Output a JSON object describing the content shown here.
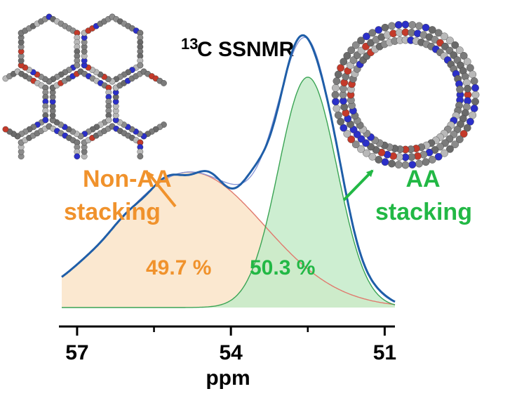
{
  "chart_data": {
    "type": "area",
    "title_super": "13",
    "title_main": "C SSNMR",
    "xlabel": "ppm",
    "x_reversed": true,
    "xlim": [
      57.3,
      50.8
    ],
    "x_ticks": [
      57,
      54,
      51
    ],
    "x_minor_ticks": [
      55.5,
      52.5
    ],
    "series": [
      {
        "label_lines": [
          "Non-AA",
          "stacking"
        ],
        "percent_label": "49.7 %",
        "center": 54.8,
        "height": 1.0,
        "sigma": 1.45,
        "x": [
          57.0,
          56.5,
          56.0,
          55.5,
          55.0,
          54.8,
          54.5,
          54.0,
          53.5,
          53.0,
          52.5,
          52.0,
          51.5
        ],
        "y": [
          0.34,
          0.55,
          0.76,
          0.92,
          0.99,
          1.0,
          0.98,
          0.86,
          0.66,
          0.44,
          0.25,
          0.13,
          0.05
        ]
      },
      {
        "label_lines": [
          "AA",
          "stacking"
        ],
        "percent_label": "50.3 %",
        "center": 52.5,
        "height": 1.7,
        "sigma": 0.57,
        "x": [
          54.0,
          53.5,
          53.0,
          52.8,
          52.5,
          52.2,
          52.0,
          51.5,
          51.0
        ],
        "y": [
          0.05,
          0.36,
          1.16,
          1.49,
          1.7,
          1.49,
          1.16,
          0.36,
          0.05
        ]
      }
    ],
    "colors": {
      "non_aa_text": "#f0922c",
      "non_aa_fill": "#fbe6cb",
      "non_aa_line": "#e07a6e",
      "aa_text": "#22b845",
      "aa_fill": "#c4ebc9",
      "aa_line": "#3aa454",
      "envelope": "#1f5ea8",
      "sim": "#8a98d8"
    },
    "annotations": [
      {
        "text": "Non-AA stacking",
        "arrow": "toward upper-left structure image"
      },
      {
        "text": "AA stacking",
        "arrow": "toward upper-right structure image"
      }
    ]
  }
}
